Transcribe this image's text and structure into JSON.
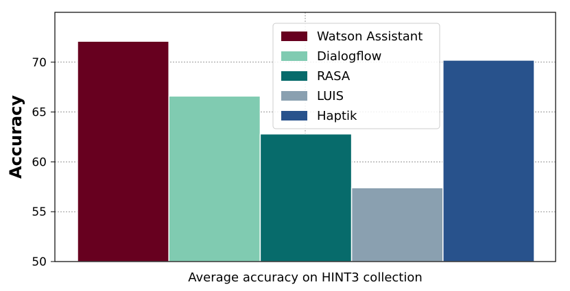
{
  "chart_data": {
    "type": "bar",
    "title": "",
    "xlabel": "Average accuracy on HINT3 collection",
    "ylabel": "Accuracy",
    "ylim": [
      50,
      75
    ],
    "yticks": [
      50,
      55,
      60,
      65,
      70
    ],
    "grid": true,
    "legend_position": "upper-right",
    "series": [
      {
        "name": "Watson Assistant",
        "value": 72.1,
        "color": "#67001f"
      },
      {
        "name": "Dialogflow",
        "value": 66.6,
        "color": "#80cbb1"
      },
      {
        "name": "RASA",
        "value": 62.8,
        "color": "#076b6b"
      },
      {
        "name": "LUIS",
        "value": 57.4,
        "color": "#8aa0b0"
      },
      {
        "name": "Haptik",
        "value": 70.2,
        "color": "#28528c"
      }
    ]
  }
}
